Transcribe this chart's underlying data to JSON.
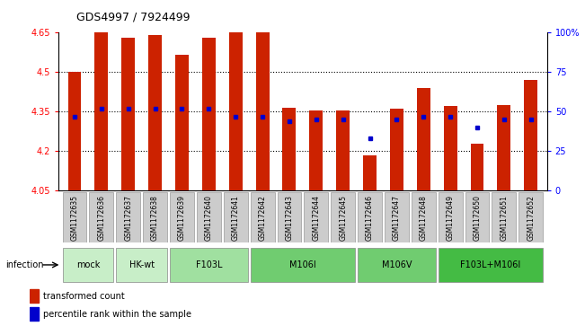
{
  "title": "GDS4997 / 7924499",
  "samples": [
    "GSM1172635",
    "GSM1172636",
    "GSM1172637",
    "GSM1172638",
    "GSM1172639",
    "GSM1172640",
    "GSM1172641",
    "GSM1172642",
    "GSM1172643",
    "GSM1172644",
    "GSM1172645",
    "GSM1172646",
    "GSM1172647",
    "GSM1172648",
    "GSM1172649",
    "GSM1172650",
    "GSM1172651",
    "GSM1172652"
  ],
  "bar_values": [
    4.5,
    4.655,
    4.63,
    4.64,
    4.565,
    4.63,
    4.68,
    4.67,
    4.365,
    4.355,
    4.355,
    4.185,
    4.36,
    4.44,
    4.37,
    4.23,
    4.375,
    4.47
  ],
  "percentile_values": [
    47,
    52,
    52,
    52,
    52,
    52,
    47,
    47,
    44,
    45,
    45,
    33,
    45,
    47,
    47,
    40,
    45,
    45
  ],
  "groups": [
    {
      "label": "mock",
      "start": 0,
      "end": 2,
      "color": "#c8eec8"
    },
    {
      "label": "HK-wt",
      "start": 2,
      "end": 4,
      "color": "#c8eec8"
    },
    {
      "label": "F103L",
      "start": 4,
      "end": 7,
      "color": "#a0e0a0"
    },
    {
      "label": "M106I",
      "start": 7,
      "end": 11,
      "color": "#70cc70"
    },
    {
      "label": "M106V",
      "start": 11,
      "end": 14,
      "color": "#70cc70"
    },
    {
      "label": "F103L+M106I",
      "start": 14,
      "end": 18,
      "color": "#44bb44"
    }
  ],
  "ylim": [
    4.05,
    4.65
  ],
  "yticks": [
    4.05,
    4.2,
    4.35,
    4.5,
    4.65
  ],
  "right_ytick_vals": [
    0,
    25,
    50,
    75,
    100
  ],
  "right_ytick_labels": [
    "0",
    "25",
    "50",
    "75",
    "100%"
  ],
  "bar_color": "#cc2200",
  "percentile_color": "#0000cc",
  "bar_width": 0.5,
  "base_value": 4.05,
  "grid_lines": [
    4.2,
    4.35,
    4.5
  ]
}
